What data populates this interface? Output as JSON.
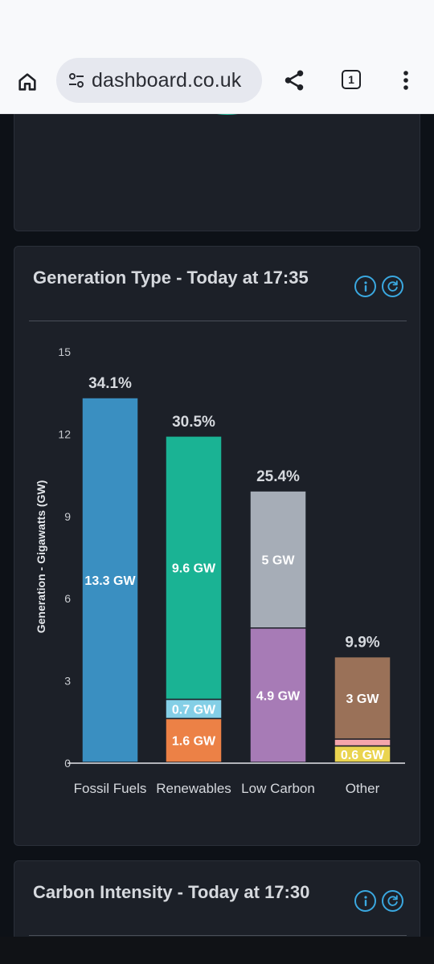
{
  "browser": {
    "url": "dashboard.co.uk",
    "tab_count": "1"
  },
  "cards": {
    "generation": {
      "title": "Generation Type - Today at 17:35"
    },
    "carbon": {
      "title": "Carbon Intensity - Today at 17:30"
    }
  },
  "chart_data": {
    "type": "bar",
    "stacked": true,
    "title": "",
    "ylabel": "Generation - Gigawatts (GW)",
    "xlabel": "",
    "ylim": [
      0,
      15
    ],
    "yticks": [
      0,
      3,
      6,
      9,
      12,
      15
    ],
    "grid": false,
    "categories": [
      "Fossil Fuels",
      "Renewables",
      "Low Carbon",
      "Other"
    ],
    "totals_labels": [
      "34.1%",
      "30.5%",
      "25.4%",
      "9.9%"
    ],
    "segments": [
      [
        {
          "value": 13.3,
          "label": "13.3 GW",
          "color": "#3a8fc1"
        }
      ],
      [
        {
          "value": 1.6,
          "label": "1.6 GW",
          "color": "#ec8146"
        },
        {
          "value": 0.7,
          "label": "0.7 GW",
          "color": "#84cfe6"
        },
        {
          "value": 9.6,
          "label": "9.6 GW",
          "color": "#1ab394"
        }
      ],
      [
        {
          "value": 4.9,
          "label": "4.9 GW",
          "color": "#a77bb6"
        },
        {
          "value": 5.0,
          "label": "5 GW",
          "color": "#a6adb7"
        }
      ],
      [
        {
          "value": 0.6,
          "label": "0.6 GW",
          "color": "#ead44f"
        },
        {
          "value": 0.25,
          "label": "",
          "color": "#f4a5ab"
        },
        {
          "value": 3.0,
          "label": "3 GW",
          "color": "#9a7158"
        }
      ]
    ]
  },
  "colors": {
    "background": "#0d1117",
    "card": "#1c2028",
    "accent": "#3aa8e0",
    "text": "#d6d9de"
  },
  "icons": {
    "home": "home-icon",
    "site_settings": "tune-icon",
    "share": "share-icon",
    "tabs": "tab-switcher-icon",
    "menu": "more-vert-icon",
    "info": "info-icon",
    "refresh": "refresh-icon"
  }
}
